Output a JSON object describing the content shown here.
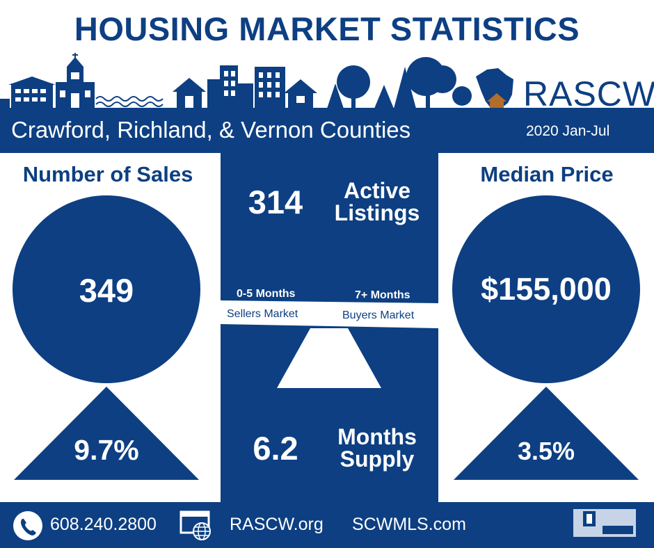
{
  "header": {
    "title": "HOUSING MARKET STATISTICS",
    "brand": "RASCW",
    "region": "Crawford, Richland, & Vernon Counties",
    "period": "2020 Jan-Jul"
  },
  "sales": {
    "label": "Number of Sales",
    "value": "349",
    "change": "9.7%"
  },
  "listings": {
    "value": "314",
    "label_line1": "Active",
    "label_line2": "Listings"
  },
  "scale": {
    "left_top": "0-5 Months",
    "left_bottom": "Sellers Market",
    "right_top": "7+ Months",
    "right_bottom": "Buyers Market"
  },
  "supply": {
    "value": "6.2",
    "label_line1": "Months",
    "label_line2": "Supply"
  },
  "price": {
    "label": "Median Price",
    "value": "$155,000",
    "change": "3.5%"
  },
  "footer": {
    "phone": "608.240.2800",
    "site1": "RASCW.org",
    "site2": "SCWMLS.com"
  },
  "colors": {
    "primary": "#0d3f82",
    "background": "#ffffff",
    "house_accent": "#b36d2a"
  },
  "icons": [
    "phone-icon",
    "web-icon",
    "realtor-mls-logo",
    "skyline-illustration",
    "wisconsin-map-icon"
  ]
}
